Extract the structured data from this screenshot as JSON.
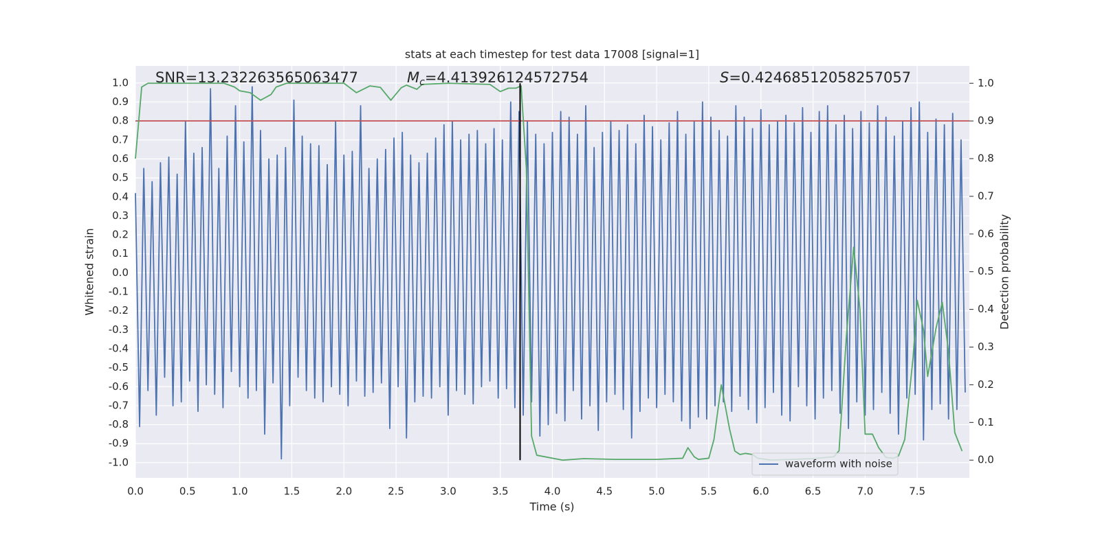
{
  "chart_data": {
    "type": "line",
    "title": "stats at each timestep for test data 17008 [signal=1]",
    "xlabel": "Time (s)",
    "ylabel": "Whitened strain",
    "y2label": "Detection probability",
    "annotations": [
      {
        "text": "SNR=13.232263565063477"
      },
      {
        "symbol": "M",
        "sub": "c",
        "text": "=4.413926124572754"
      },
      {
        "symbol": "S",
        "text": "=0.42468512058257057"
      }
    ],
    "xlim": [
      0,
      8
    ],
    "ylim": [
      -1.08,
      1.09
    ],
    "y2lim": [
      -0.047,
      1.046
    ],
    "xticks": [
      {
        "value": 0,
        "label": "0.0"
      },
      0.5,
      {
        "value": 1,
        "label": "1.0"
      },
      1.5,
      {
        "value": 2,
        "label": "2.0"
      },
      2.5,
      {
        "value": 3,
        "label": "3.0"
      },
      3.5,
      {
        "value": 4,
        "label": "4.0"
      },
      4.5,
      {
        "value": 5,
        "label": "5.0"
      },
      5.5,
      {
        "value": 6,
        "label": "6.0"
      },
      6.5,
      {
        "value": 7,
        "label": "7.0"
      },
      7.5
    ],
    "yticks": [
      {
        "value": -1,
        "label": "-1.0"
      },
      -0.9,
      -0.8,
      -0.7,
      -0.6,
      -0.5,
      -0.4,
      -0.3,
      -0.2,
      -0.1,
      {
        "value": 0,
        "label": "0.0"
      },
      0.1,
      0.2,
      0.3,
      0.4,
      0.5,
      0.6,
      0.7,
      0.8,
      0.9,
      {
        "value": 1,
        "label": "1.0"
      }
    ],
    "y2ticks": [
      {
        "value": 0,
        "label": "0.0"
      },
      0.1,
      0.2,
      0.3,
      0.4,
      0.5,
      0.6,
      0.7,
      0.8,
      0.9,
      {
        "value": 1,
        "label": "1.0"
      }
    ],
    "grid": true,
    "legend": "lower right",
    "hline": {
      "value": 0.9,
      "axis": "y2",
      "color": "#c44e52"
    },
    "vline": {
      "value": 3.69,
      "from": 0,
      "to": 1,
      "axis": "y2",
      "color": "#000000"
    },
    "series": [
      {
        "name": "waveform with noise",
        "color": "#4c72b0",
        "x": [
          0,
          0.04,
          0.08,
          0.12,
          0.16,
          0.2,
          0.24,
          0.28,
          0.32,
          0.36,
          0.4,
          0.44,
          0.48,
          0.52,
          0.56,
          0.6,
          0.64,
          0.68,
          0.72,
          0.76,
          0.8,
          0.84,
          0.88,
          0.92,
          0.96,
          1,
          1.04,
          1.08,
          1.12,
          1.16,
          1.2,
          1.24,
          1.28,
          1.32,
          1.36,
          1.4,
          1.44,
          1.48,
          1.52,
          1.56,
          1.6,
          1.64,
          1.68,
          1.72,
          1.76,
          1.8,
          1.84,
          1.88,
          1.92,
          1.96,
          2,
          2.04,
          2.08,
          2.12,
          2.16,
          2.2,
          2.24,
          2.28,
          2.32,
          2.36,
          2.4,
          2.44,
          2.48,
          2.52,
          2.56,
          2.6,
          2.64,
          2.68,
          2.72,
          2.76,
          2.8,
          2.84,
          2.88,
          2.92,
          2.96,
          3,
          3.04,
          3.08,
          3.12,
          3.16,
          3.2,
          3.24,
          3.28,
          3.32,
          3.36,
          3.4,
          3.44,
          3.48,
          3.52,
          3.56,
          3.6,
          3.64,
          3.68,
          3.72,
          3.76,
          3.8,
          3.84,
          3.88,
          3.92,
          3.96,
          4,
          4.04,
          4.08,
          4.12,
          4.16,
          4.2,
          4.24,
          4.28,
          4.32,
          4.36,
          4.4,
          4.44,
          4.48,
          4.52,
          4.56,
          4.6,
          4.64,
          4.68,
          4.72,
          4.76,
          4.8,
          4.84,
          4.88,
          4.92,
          4.96,
          5,
          5.04,
          5.08,
          5.12,
          5.16,
          5.2,
          5.24,
          5.28,
          5.32,
          5.36,
          5.4,
          5.44,
          5.48,
          5.52,
          5.56,
          5.6,
          5.64,
          5.68,
          5.72,
          5.76,
          5.8,
          5.84,
          5.88,
          5.92,
          5.96,
          6,
          6.04,
          6.08,
          6.12,
          6.16,
          6.2,
          6.24,
          6.28,
          6.32,
          6.36,
          6.4,
          6.44,
          6.48,
          6.52,
          6.56,
          6.6,
          6.64,
          6.68,
          6.72,
          6.76,
          6.8,
          6.84,
          6.88,
          6.92,
          6.96,
          7,
          7.04,
          7.08,
          7.12,
          7.16,
          7.2,
          7.24,
          7.28,
          7.32,
          7.36,
          7.4,
          7.44,
          7.48,
          7.52,
          7.56,
          7.6,
          7.64,
          7.68,
          7.72,
          7.76,
          7.8,
          7.84,
          7.88,
          7.92,
          7.96
        ],
        "values": [
          0.42,
          -0.81,
          0.55,
          -0.62,
          0.48,
          -0.75,
          0.58,
          -0.55,
          0.61,
          -0.7,
          0.52,
          -0.68,
          0.8,
          -0.57,
          0.63,
          -0.73,
          0.66,
          -0.59,
          0.97,
          -0.64,
          0.55,
          -0.71,
          0.72,
          -0.52,
          0.88,
          -0.6,
          0.69,
          -0.66,
          0.98,
          -0.62,
          0.75,
          -0.85,
          0.6,
          -0.58,
          0.62,
          -0.98,
          0.66,
          -0.7,
          0.91,
          -0.55,
          0.72,
          -0.62,
          0.68,
          -0.66,
          0.67,
          -0.68,
          0.57,
          -0.6,
          0.8,
          -0.64,
          0.62,
          -0.7,
          0.64,
          -0.57,
          0.88,
          -0.65,
          0.55,
          -0.63,
          0.6,
          -0.58,
          0.65,
          -0.82,
          0.71,
          -0.6,
          0.74,
          -0.87,
          0.62,
          -0.68,
          0.58,
          -0.65,
          0.63,
          -0.66,
          0.71,
          -0.6,
          0.78,
          -0.75,
          0.8,
          -0.62,
          0.7,
          -0.64,
          0.73,
          -0.69,
          0.75,
          -0.6,
          0.68,
          -0.57,
          0.76,
          -0.66,
          0.7,
          -0.61,
          0.9,
          -0.71,
          0.85,
          -0.75,
          0.8,
          -0.68,
          0.73,
          -0.86,
          0.68,
          -0.8,
          0.74,
          -0.74,
          0.85,
          -0.78,
          0.82,
          -0.62,
          0.73,
          -0.77,
          0.88,
          -0.7,
          0.66,
          -0.83,
          0.74,
          -0.68,
          0.8,
          -0.64,
          0.75,
          -0.72,
          0.78,
          -0.87,
          0.68,
          -0.73,
          0.83,
          -0.66,
          0.77,
          -0.71,
          0.7,
          -0.64,
          0.79,
          -0.68,
          0.85,
          -0.78,
          0.73,
          -0.82,
          0.8,
          -0.76,
          0.9,
          -0.77,
          0.82,
          -0.7,
          0.75,
          -0.68,
          0.72,
          -0.73,
          0.88,
          -0.65,
          0.82,
          -0.72,
          0.76,
          -0.79,
          0.86,
          -0.71,
          0.78,
          -0.63,
          0.8,
          -0.75,
          0.83,
          -0.78,
          0.79,
          -0.6,
          0.87,
          -0.7,
          0.74,
          -0.77,
          0.85,
          -0.66,
          0.88,
          -0.62,
          0.78,
          -0.74,
          0.83,
          -0.82,
          0.76,
          -0.68,
          0.85,
          -0.75,
          0.79,
          -0.72,
          0.88,
          -0.63,
          0.82,
          -0.74,
          0.72,
          -0.85,
          0.8,
          -0.66,
          0.87,
          -0.64,
          0.9,
          -0.88,
          0.74,
          -0.72,
          0.81,
          -0.69,
          0.78,
          -0.77,
          0.84,
          -0.72,
          0.7,
          -0.63
        ]
      },
      {
        "color": "#55a868",
        "axis": "y2",
        "x": [
          0,
          0.06,
          0.12,
          0.3,
          0.5,
          0.7,
          0.85,
          0.95,
          1.0,
          1.1,
          1.2,
          1.3,
          1.35,
          1.45,
          1.7,
          2.0,
          2.12,
          2.25,
          2.35,
          2.45,
          2.55,
          2.6,
          2.7,
          2.75,
          3.0,
          3.4,
          3.5,
          3.58,
          3.65,
          3.7,
          3.75,
          3.8,
          3.85,
          4.1,
          4.3,
          4.6,
          5.0,
          5.25,
          5.3,
          5.36,
          5.4,
          5.5,
          5.55,
          5.62,
          5.7,
          5.75,
          5.8,
          5.85,
          5.92,
          5.97,
          6.1,
          6.5,
          6.7,
          6.75,
          6.82,
          6.89,
          6.95,
          7.0,
          7.07,
          7.13,
          7.2,
          7.27,
          7.32,
          7.38,
          7.46,
          7.5,
          7.56,
          7.6,
          7.68,
          7.74,
          7.8,
          7.86,
          7.93
        ],
        "values": [
          0.8,
          0.99,
          1.0,
          1.0,
          1.0,
          1.0,
          1.0,
          0.99,
          0.98,
          0.975,
          0.955,
          0.97,
          0.99,
          1.0,
          1.0,
          1.0,
          0.975,
          0.993,
          0.989,
          0.955,
          0.988,
          0.995,
          0.984,
          0.997,
          1.0,
          0.997,
          0.978,
          0.987,
          0.987,
          0.993,
          0.774,
          0.064,
          0.013,
          0.0,
          0.004,
          0.002,
          0.002,
          0.005,
          0.033,
          0.009,
          0.002,
          0.005,
          0.055,
          0.2,
          0.082,
          0.024,
          0.015,
          0.018,
          0.015,
          0.005,
          0.0,
          0.004,
          0.009,
          0.025,
          0.328,
          0.565,
          0.401,
          0.069,
          0.069,
          0.033,
          0.007,
          0.005,
          0.011,
          0.055,
          0.273,
          0.424,
          0.346,
          0.222,
          0.35,
          0.419,
          0.288,
          0.073,
          0.024
        ]
      }
    ]
  }
}
